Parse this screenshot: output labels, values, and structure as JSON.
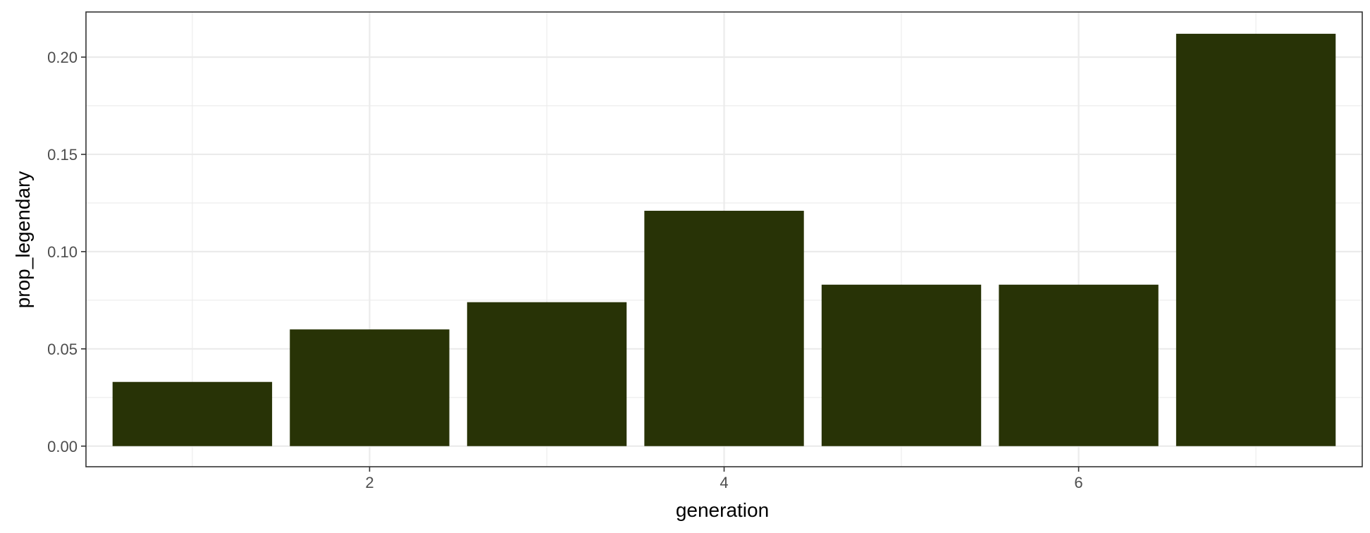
{
  "chart_data": {
    "type": "bar",
    "title": "",
    "xlabel": "generation",
    "ylabel": "prop_legendary",
    "x": [
      1,
      2,
      3,
      4,
      5,
      6,
      7
    ],
    "values": [
      0.033,
      0.06,
      0.074,
      0.121,
      0.083,
      0.083,
      0.212
    ],
    "xlim": [
      0.4,
      7.6
    ],
    "ylim": [
      -0.0106,
      0.2232
    ],
    "xticks": [
      2,
      4,
      6
    ],
    "xtick_labels": [
      "2",
      "4",
      "6"
    ],
    "yticks": [
      0,
      0.05,
      0.1,
      0.15,
      0.2
    ],
    "ytick_labels": [
      "0.00",
      "0.05",
      "0.10",
      "0.15",
      "0.20"
    ],
    "grid": true,
    "bar_color": "#283306",
    "grid_color": "#ebebeb",
    "panel_border_color": "#333333"
  }
}
